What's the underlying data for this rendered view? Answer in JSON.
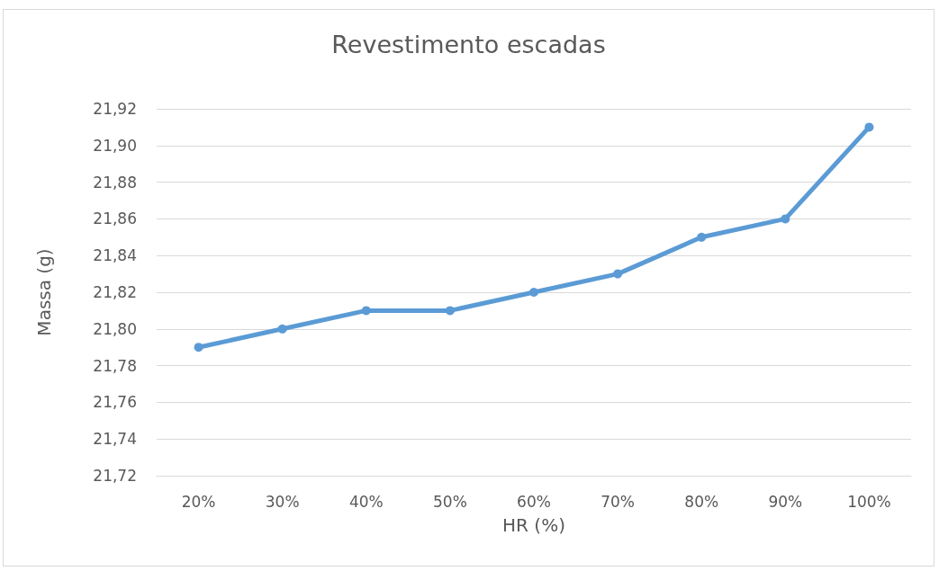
{
  "chart_data": {
    "type": "line",
    "title": "Revestimento escadas",
    "xlabel": "HR (%)",
    "ylabel": "Massa (g)",
    "categories": [
      "20%",
      "30%",
      "40%",
      "50%",
      "60%",
      "70%",
      "80%",
      "90%",
      "100%"
    ],
    "series": [
      {
        "color": "#5b9bd5",
        "values": [
          21.79,
          21.8,
          21.81,
          21.81,
          21.82,
          21.83,
          21.85,
          21.86,
          21.91
        ]
      }
    ],
    "ylim": [
      21.72,
      21.92
    ],
    "yticks": [
      {
        "value": 21.72,
        "label": "21,72"
      },
      {
        "value": 21.74,
        "label": "21,74"
      },
      {
        "value": 21.76,
        "label": "21,76"
      },
      {
        "value": 21.78,
        "label": "21,78"
      },
      {
        "value": 21.8,
        "label": "21,80"
      },
      {
        "value": 21.82,
        "label": "21,82"
      },
      {
        "value": 21.84,
        "label": "21,84"
      },
      {
        "value": 21.86,
        "label": "21,86"
      },
      {
        "value": 21.88,
        "label": "21,88"
      },
      {
        "value": 21.9,
        "label": "21,90"
      },
      {
        "value": 21.92,
        "label": "21,92"
      }
    ],
    "grid": "y",
    "marker": "circle",
    "line_style": "solid"
  }
}
